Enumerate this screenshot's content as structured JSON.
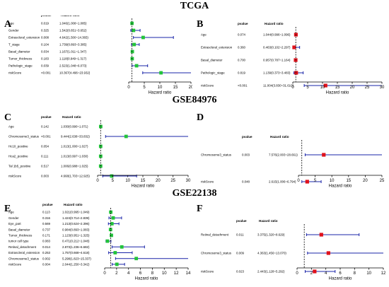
{
  "titles": [
    "TCGA",
    "GSE84976",
    "GSE22138"
  ],
  "col_pvalue": "pvalue",
  "col_hr": "Hazard ratio",
  "chart_data": [
    {
      "type": "forest",
      "letter": "A",
      "xlabel": "Hazard ratio",
      "xlim": [
        0,
        20
      ],
      "ticks": [
        0,
        5,
        10,
        15,
        20
      ],
      "ref": 1,
      "rows": [
        {
          "label": "Age",
          "pvalue": "0.019",
          "hr_text": "1.046(1.008~1.085)",
          "hr": 1.046,
          "lo": 1.008,
          "hi": 1.085
        },
        {
          "label": "Gender",
          "pvalue": "0.325",
          "hr_text": "1.542(0.651~3.652)",
          "hr": 1.542,
          "lo": 0.651,
          "hi": 3.652
        },
        {
          "label": "Extrascleral_extension",
          "pvalue": "0.008",
          "hr_text": "4.642(1.500~14.365)",
          "hr": 4.642,
          "lo": 1.5,
          "hi": 14.365
        },
        {
          "label": "T_stage",
          "pvalue": "0.104",
          "hr_text": "1.739(0.893~3.385)",
          "hr": 1.739,
          "lo": 0.893,
          "hi": 3.385
        },
        {
          "label": "Basal_diameter",
          "pvalue": "0.034",
          "hr_text": "1.167(1.011~1.347)",
          "hr": 1.167,
          "lo": 1.011,
          "hi": 1.347
        },
        {
          "label": "Tumor_thickness",
          "pvalue": "0.183",
          "hr_text": "1.118(0.949~1.317)",
          "hr": 1.118,
          "lo": 0.949,
          "hi": 1.317
        },
        {
          "label": "Pathologic_stage",
          "pvalue": "0.039",
          "hr_text": "2.523(1.048~6.073)",
          "hr": 2.523,
          "lo": 1.048,
          "hi": 6.073
        },
        {
          "label": "riskScore",
          "pvalue": "<0.001",
          "hr_text": "10.367(4.496~23.932)",
          "hr": 10.367,
          "lo": 4.496,
          "hi": 23.932
        }
      ]
    },
    {
      "type": "forest",
      "letter": "B",
      "xlabel": "Hazard ratio",
      "xlim": [
        0,
        30
      ],
      "ticks": [
        0,
        5,
        10,
        15,
        20,
        25,
        30
      ],
      "ref": 1,
      "rows": [
        {
          "label": "Age",
          "pvalue": "0.074",
          "hr_text": "1.044(0.996~1.096)",
          "hr": 1.044,
          "lo": 0.996,
          "hi": 1.096
        },
        {
          "label": "Extrascleral_extension",
          "pvalue": "0.360",
          "hr_text": "0.463(0.102~2.297)",
          "hr": 0.463,
          "lo": 0.102,
          "hi": 2.297
        },
        {
          "label": "Basal_diameter",
          "pvalue": "0.700",
          "hr_text": "0.957(0.787~1.164)",
          "hr": 0.957,
          "lo": 0.787,
          "hi": 1.164
        },
        {
          "label": "Pathologic_stage",
          "pvalue": "0.819",
          "hr_text": "1.139(0.373~3.483)",
          "hr": 1.139,
          "lo": 0.373,
          "hi": 3.483
        },
        {
          "label": "riskScore",
          "pvalue": "<0.001",
          "hr_text": "11.004(3.830~31.610)",
          "hr": 11.004,
          "lo": 3.83,
          "hi": 31.61
        }
      ]
    },
    {
      "type": "forest",
      "letter": "C",
      "xlabel": "Hazard ratio",
      "xlim": [
        0,
        30
      ],
      "ticks": [
        0,
        5,
        10,
        15,
        20,
        25,
        30
      ],
      "ref": 1,
      "rows": [
        {
          "label": "Age",
          "pvalue": "0.142",
          "hr_text": "1.030(0.990~1.071)",
          "hr": 1.03,
          "lo": 0.99,
          "hi": 1.071
        },
        {
          "label": "Chromosome3_status",
          "pvalue": "<0.001",
          "hr_text": "9.444(2.638~33.832)",
          "hr": 9.444,
          "lo": 2.638,
          "hi": 33.832
        },
        {
          "label": "Hc10_positive",
          "pvalue": "0.054",
          "hr_text": "1.013(1.000~1.027)",
          "hr": 1.013,
          "lo": 1.0,
          "hi": 1.027
        },
        {
          "label": "Hca2_positive",
          "pvalue": "0.111",
          "hr_text": "1.013(0.997~1.030)",
          "hr": 1.013,
          "lo": 0.997,
          "hi": 1.03
        },
        {
          "label": "Tal 1b5_positive",
          "pvalue": "0.517",
          "hr_text": "1.006(0.988~1.025)",
          "hr": 1.006,
          "lo": 0.988,
          "hi": 1.025
        },
        {
          "label": "riskScore",
          "pvalue": "0.003",
          "hr_text": "4.668(1.703~12.925)",
          "hr": 4.668,
          "lo": 1.703,
          "hi": 12.925
        }
      ]
    },
    {
      "type": "forest",
      "letter": "D",
      "xlabel": "Hazard ratio",
      "xlim": [
        0,
        25
      ],
      "ticks": [
        0,
        5,
        10,
        15,
        20,
        25
      ],
      "ref": 1,
      "rows": [
        {
          "label": "Chromosome3_status",
          "pvalue": "0.003",
          "hr_text": "7.576(2.003~28.661)",
          "hr": 7.576,
          "lo": 2.003,
          "hi": 28.661
        },
        {
          "label": "riskScore",
          "pvalue": "0.048",
          "hr_text": "2.615(1.006~6.794)",
          "hr": 2.615,
          "lo": 1.006,
          "hi": 6.794
        }
      ]
    },
    {
      "type": "forest",
      "letter": "E",
      "xlabel": "Hazard ratio",
      "xlim": [
        0,
        14
      ],
      "ticks": [
        0,
        2,
        4,
        6,
        8,
        10,
        12,
        14
      ],
      "ref": 1,
      "rows": [
        {
          "label": "Age",
          "pvalue": "0.113",
          "hr_text": "1.021(0.995~1.049)",
          "hr": 1.021,
          "lo": 0.995,
          "hi": 1.049
        },
        {
          "label": "Gender",
          "pvalue": "0.316",
          "hr_text": "1.424(0.714~2.839)",
          "hr": 1.424,
          "lo": 0.714,
          "hi": 2.839
        },
        {
          "label": "Eye_part",
          "pvalue": "0.569",
          "hr_text": "1.213(0.624~2.396)",
          "hr": 1.213,
          "lo": 0.624,
          "hi": 2.396
        },
        {
          "label": "Basal_diameter",
          "pvalue": "0.737",
          "hr_text": "0.984(0.893~1.083)",
          "hr": 0.984,
          "lo": 0.893,
          "hi": 1.083
        },
        {
          "label": "Tumor_thickness",
          "pvalue": "0.171",
          "hr_text": "1.123(0.951~1.325)",
          "hr": 1.123,
          "lo": 0.951,
          "hi": 1.325
        },
        {
          "label": "tumor cell type",
          "pvalue": "0.083",
          "hr_text": "0.471(0.212~1.048)",
          "hr": 0.471,
          "lo": 0.212,
          "hi": 1.048
        },
        {
          "label": "Retinal_detachment",
          "pvalue": "0.014",
          "hr_text": "2.873(1.236~6.682)",
          "hr": 2.873,
          "lo": 1.236,
          "hi": 6.682
        },
        {
          "label": "Extrascleral_extension",
          "pvalue": "0.253",
          "hr_text": "1.757(0.668~4.618)",
          "hr": 1.757,
          "lo": 0.668,
          "hi": 4.618
        },
        {
          "label": "Chromosome3_status",
          "pvalue": "0.002",
          "hr_text": "5.298(1.823~15.337)",
          "hr": 5.298,
          "lo": 1.823,
          "hi": 15.337
        },
        {
          "label": "riskScore",
          "pvalue": "0.004",
          "hr_text": "2.044(1.250~3.342)",
          "hr": 2.044,
          "lo": 1.25,
          "hi": 3.342
        }
      ]
    },
    {
      "type": "forest",
      "letter": "F",
      "xlabel": "Hazard ratio",
      "xlim": [
        0,
        12
      ],
      "ticks": [
        0,
        2,
        4,
        6,
        8,
        10,
        12
      ],
      "ref": 1,
      "rows": [
        {
          "label": "Retinal_detachment",
          "pvalue": "0.011",
          "hr_text": "3.375(1.320~8.629)",
          "hr": 3.375,
          "lo": 1.32,
          "hi": 8.629
        },
        {
          "label": "Chromosome3_status",
          "pvalue": "0.009",
          "hr_text": "4.363(1.456~13.070)",
          "hr": 4.363,
          "lo": 1.456,
          "hi": 13.07
        },
        {
          "label": "riskScore",
          "pvalue": "0.023",
          "hr_text": "2.443(1.128~5.292)",
          "hr": 2.443,
          "lo": 1.128,
          "hi": 5.292
        }
      ]
    }
  ]
}
